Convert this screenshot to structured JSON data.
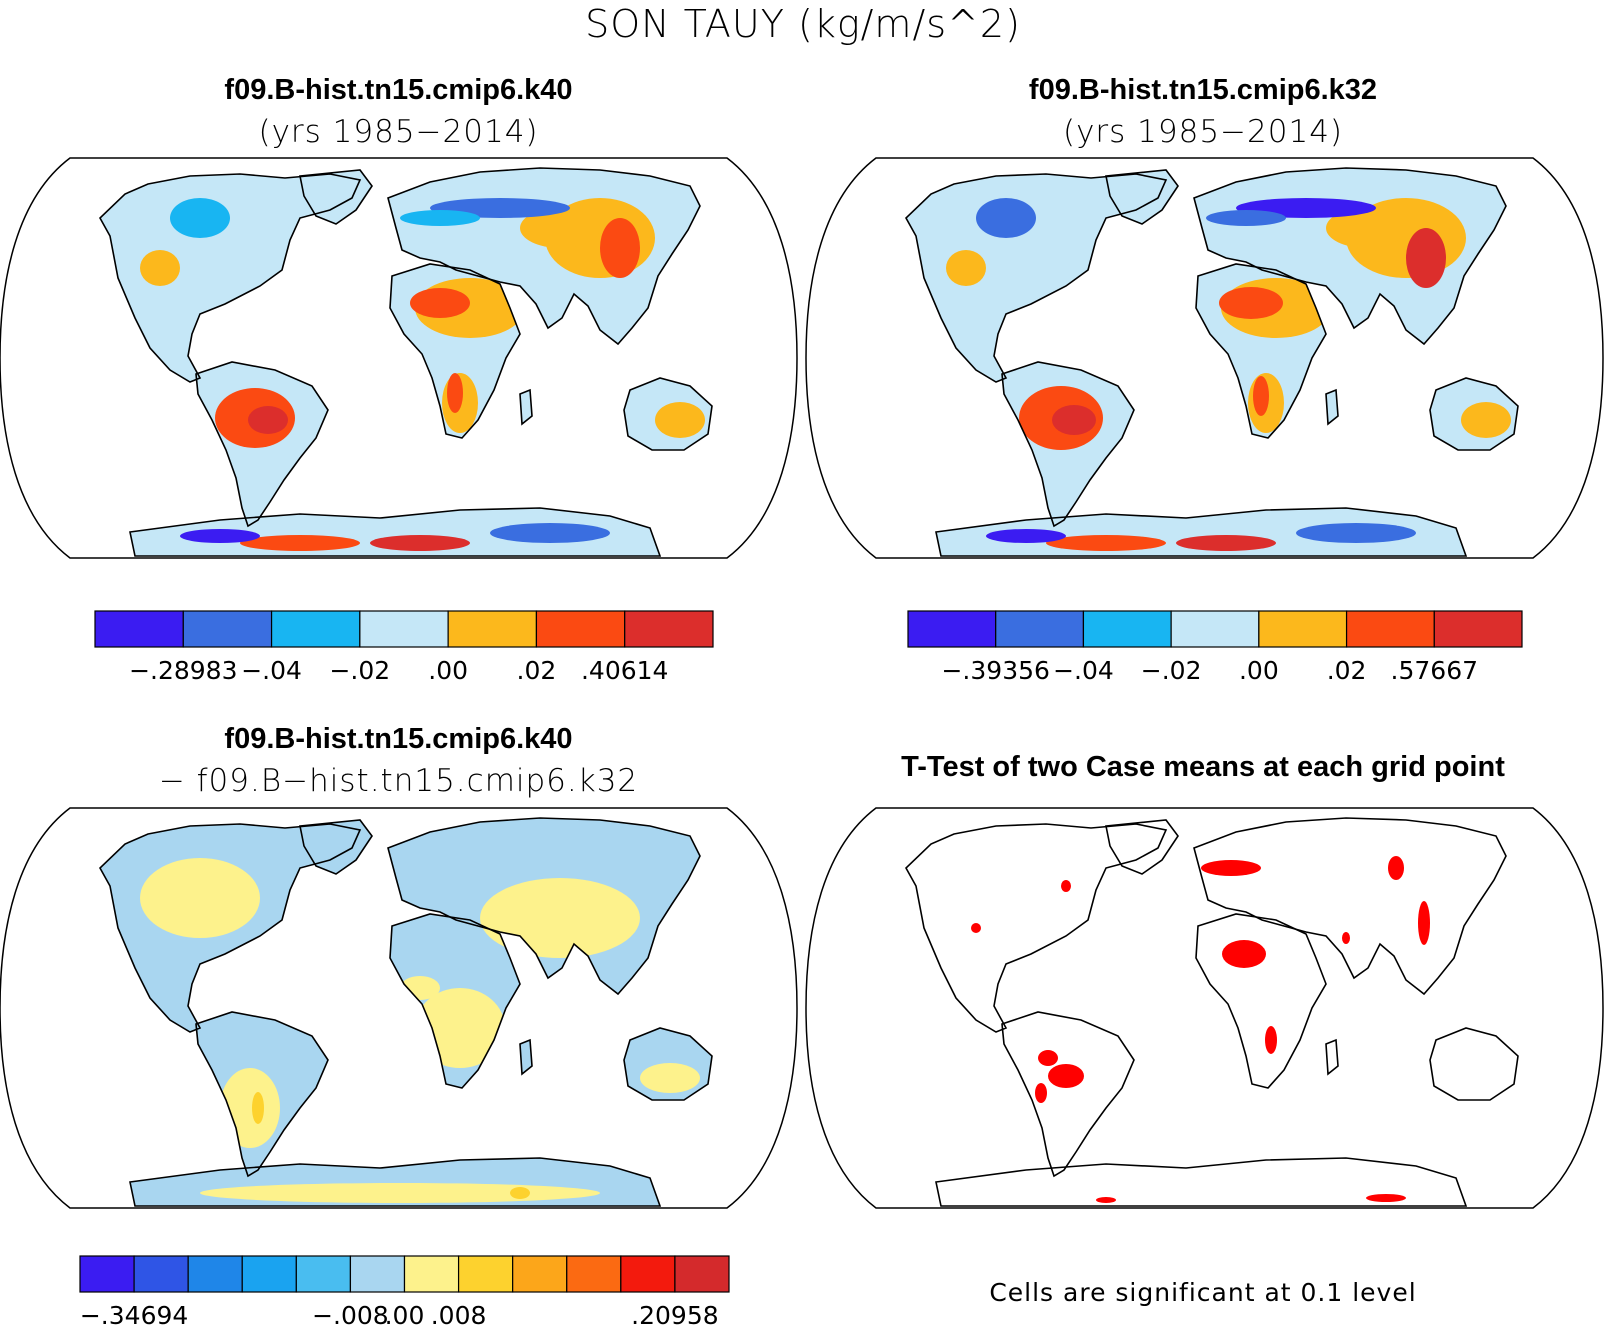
{
  "title": "SON TAUY (kg/m/s^2)",
  "panels": [
    {
      "id": "p1",
      "title": "f09.B-hist.tn15.cmip6.k40",
      "subtitle": "(yrs 1985−2014)",
      "colorbar": {
        "colors": [
          "#3b1cf2",
          "#3a6ee0",
          "#18b5f2",
          "#c5e7f7",
          "#fcb81c",
          "#fb4a12",
          "#dc2e2c"
        ],
        "labels": [
          {
            "text": "−.28983",
            "edge": 1
          },
          {
            "text": "−.04",
            "edge": 2
          },
          {
            "text": "−.02",
            "edge": 3
          },
          {
            "text": ".00",
            "edge": 4
          },
          {
            "text": ".02",
            "edge": 5
          },
          {
            "text": ".40614",
            "edge": 6
          }
        ]
      }
    },
    {
      "id": "p2",
      "title": "f09.B-hist.tn15.cmip6.k32",
      "subtitle": "(yrs 1985−2014)",
      "colorbar": {
        "colors": [
          "#3b1cf2",
          "#3a6ee0",
          "#18b5f2",
          "#c5e7f7",
          "#fcb81c",
          "#fb4a12",
          "#dc2e2c"
        ],
        "labels": [
          {
            "text": "−.39356",
            "edge": 1
          },
          {
            "text": "−.04",
            "edge": 2
          },
          {
            "text": "−.02",
            "edge": 3
          },
          {
            "text": ".00",
            "edge": 4
          },
          {
            "text": ".02",
            "edge": 5
          },
          {
            "text": ".57667",
            "edge": 6
          }
        ]
      }
    },
    {
      "id": "p3",
      "title": "f09.B-hist.tn15.cmip6.k40",
      "subtitle": "− f09.B−hist.tn15.cmip6.k32",
      "colorbar": {
        "colors": [
          "#3b1cf2",
          "#2f55e6",
          "#1f86e8",
          "#1aa3f0",
          "#49bdf0",
          "#a9d6f0",
          "#fdf28c",
          "#fdd22e",
          "#fca61a",
          "#fb6a12",
          "#f31a0d",
          "#d42a2c"
        ],
        "labels": [
          {
            "text": "−.34694",
            "edge": 1
          },
          {
            "text": "−.008",
            "edge": 5
          },
          {
            "text": ".00",
            "edge": 6
          },
          {
            "text": ".008",
            "edge": 7
          },
          {
            "text": ".20958",
            "edge": 11
          }
        ]
      }
    },
    {
      "id": "p4",
      "title": "T-Test of two Case means at each grid point",
      "note": "Cells are significant at 0.1 level",
      "signif_color": "#ff0000"
    }
  ]
}
